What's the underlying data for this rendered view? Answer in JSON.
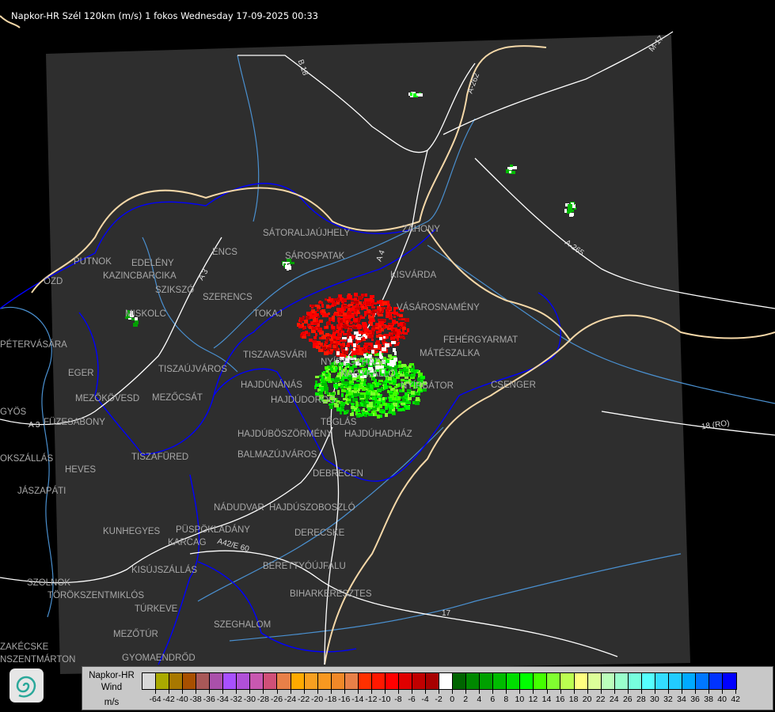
{
  "header": {
    "title": "Napkor-HR Szél 120km (m/s) 1 fokos Wednesday 17-09-2025 00:33"
  },
  "map": {
    "background_color": "#000000",
    "radar_area_color": "#2e2e2e",
    "border_color": "#f5d8a8",
    "river_color": "#4a90d0",
    "county_border_color": "#0000ff",
    "road_color": "#ffffff",
    "places": [
      "SÁTORALJAÚJHELY",
      "ZÁHONY",
      "SÁROSPATAK",
      "KISVÁRDA",
      "PUTNOK",
      "EDELÉNY",
      "ENCS",
      "KAZINCBARCIKA",
      "ÓZD",
      "SZIKSZÓ",
      "SZERENCS",
      "VÁSÁROSNAMÉNY",
      "TOKAJ",
      "MISKOLC",
      "FEHÉRGYARMAT",
      "PÉTERVÁSÁRA",
      "MÁTÉSZALKA",
      "TISZAVASVÁRI",
      "NYÍREGYHÁZA",
      "NAGYKÁLLÓ",
      "EGER",
      "TISZAÚJVÁROS",
      "HAJDÚNÁNÁS",
      "NYÍRBÁTOR",
      "CSENGER",
      "MEZŐKÖVESD",
      "MEZŐCSÁT",
      "HAJDÚDOROG",
      "GYÖS",
      "FÜZESABONY",
      "HAJDÚBÖSZÖRMÉNY",
      "TÉGLÁS",
      "HAJDÚHADHÁZ",
      "OKSZÁLLÁS",
      "HEVES",
      "TISZAFÜRED",
      "BALMAZÚJVÁROS",
      "JÁSZAPÁTI",
      "DEBRECEN",
      "NÁDUDVAR",
      "HAJDÚSZOBOSZLÓ",
      "KUNHEGYES",
      "KARCAG",
      "PÜSPÖKLADÁNY",
      "DERECSKE",
      "BERETTYÓÚJFALU",
      "KISÚJSZÁLLÁS",
      "SZOLNOK",
      "TÖRÖKSZENTMIKLÓS",
      "BIHARKERESZTES",
      "TÚRKEVE",
      "SZEGHALOM",
      "MEZŐTÚR",
      "ZAKÉCSKE",
      "GYOMAENDRŐD",
      "NSZENTMÁRTON"
    ],
    "roads": [
      "B 18",
      "A-262",
      "M-17",
      "A-265",
      "18 (RO)",
      "A 4",
      "A 3",
      "A 3",
      "17",
      "A42/E 60"
    ]
  },
  "legend": {
    "title_lines": [
      "Napkor-HR",
      "Wind",
      "m/s"
    ],
    "colors": [
      "#d8d8d8",
      "#aaaa00",
      "#a87800",
      "#a85000",
      "#a85858",
      "#aa50aa",
      "#a850ff",
      "#b050d8",
      "#c858b0",
      "#d05078",
      "#e88048",
      "#ffaa00",
      "#f8a020",
      "#f89820",
      "#f08828",
      "#e88048",
      "#ff3000",
      "#ff1800",
      "#ff0000",
      "#e00000",
      "#c00000",
      "#a80000",
      "#ffffff",
      "#006400",
      "#008800",
      "#00a000",
      "#00bb00",
      "#00dd00",
      "#00ff00",
      "#44ff00",
      "#80ff30",
      "#bbff50",
      "#ffff80",
      "#ddff99",
      "#bbffbb",
      "#99ffcc",
      "#77ffdd",
      "#55ffff",
      "#33ddff",
      "#22ccff",
      "#00aaff",
      "#0077ff",
      "#0033ff",
      "#0000ff"
    ],
    "labels": [
      "-64",
      "-42",
      "-40",
      "-38",
      "-36",
      "-34",
      "-32",
      "-30",
      "-28",
      "-26",
      "-24",
      "-22",
      "-20",
      "-18",
      "-16",
      "-14",
      "-12",
      "-10",
      "-8",
      "-6",
      "-4",
      "-2",
      "0",
      "2",
      "4",
      "6",
      "8",
      "10",
      "12",
      "14",
      "16",
      "18",
      "20",
      "22",
      "24",
      "26",
      "28",
      "30",
      "32",
      "34",
      "36",
      "38",
      "40",
      "42"
    ]
  }
}
